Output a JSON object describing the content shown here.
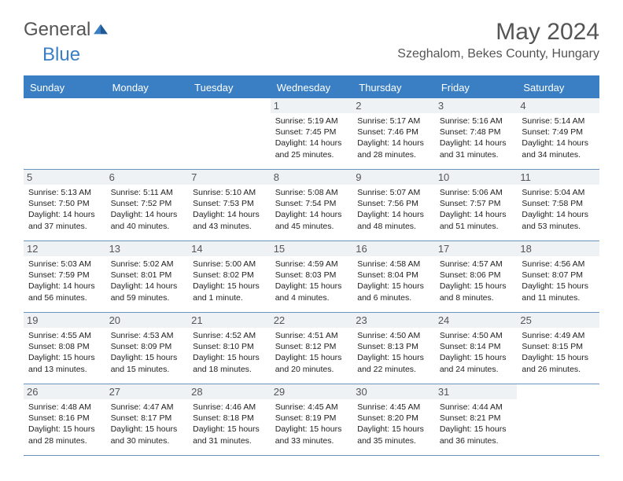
{
  "logo": {
    "general": "General",
    "blue": "Blue"
  },
  "title": "May 2024",
  "location": "Szeghalom, Bekes County, Hungary",
  "dayHeaders": [
    "Sunday",
    "Monday",
    "Tuesday",
    "Wednesday",
    "Thursday",
    "Friday",
    "Saturday"
  ],
  "colors": {
    "headerBlue": "#3a7fc4",
    "borderBlue": "#6a94bd",
    "dayBg": "#eef2f5",
    "textGray": "#555555"
  },
  "weeks": [
    [
      null,
      null,
      null,
      {
        "n": "1",
        "sr": "Sunrise: 5:19 AM",
        "ss": "Sunset: 7:45 PM",
        "dl": "Daylight: 14 hours and 25 minutes."
      },
      {
        "n": "2",
        "sr": "Sunrise: 5:17 AM",
        "ss": "Sunset: 7:46 PM",
        "dl": "Daylight: 14 hours and 28 minutes."
      },
      {
        "n": "3",
        "sr": "Sunrise: 5:16 AM",
        "ss": "Sunset: 7:48 PM",
        "dl": "Daylight: 14 hours and 31 minutes."
      },
      {
        "n": "4",
        "sr": "Sunrise: 5:14 AM",
        "ss": "Sunset: 7:49 PM",
        "dl": "Daylight: 14 hours and 34 minutes."
      }
    ],
    [
      {
        "n": "5",
        "sr": "Sunrise: 5:13 AM",
        "ss": "Sunset: 7:50 PM",
        "dl": "Daylight: 14 hours and 37 minutes."
      },
      {
        "n": "6",
        "sr": "Sunrise: 5:11 AM",
        "ss": "Sunset: 7:52 PM",
        "dl": "Daylight: 14 hours and 40 minutes."
      },
      {
        "n": "7",
        "sr": "Sunrise: 5:10 AM",
        "ss": "Sunset: 7:53 PM",
        "dl": "Daylight: 14 hours and 43 minutes."
      },
      {
        "n": "8",
        "sr": "Sunrise: 5:08 AM",
        "ss": "Sunset: 7:54 PM",
        "dl": "Daylight: 14 hours and 45 minutes."
      },
      {
        "n": "9",
        "sr": "Sunrise: 5:07 AM",
        "ss": "Sunset: 7:56 PM",
        "dl": "Daylight: 14 hours and 48 minutes."
      },
      {
        "n": "10",
        "sr": "Sunrise: 5:06 AM",
        "ss": "Sunset: 7:57 PM",
        "dl": "Daylight: 14 hours and 51 minutes."
      },
      {
        "n": "11",
        "sr": "Sunrise: 5:04 AM",
        "ss": "Sunset: 7:58 PM",
        "dl": "Daylight: 14 hours and 53 minutes."
      }
    ],
    [
      {
        "n": "12",
        "sr": "Sunrise: 5:03 AM",
        "ss": "Sunset: 7:59 PM",
        "dl": "Daylight: 14 hours and 56 minutes."
      },
      {
        "n": "13",
        "sr": "Sunrise: 5:02 AM",
        "ss": "Sunset: 8:01 PM",
        "dl": "Daylight: 14 hours and 59 minutes."
      },
      {
        "n": "14",
        "sr": "Sunrise: 5:00 AM",
        "ss": "Sunset: 8:02 PM",
        "dl": "Daylight: 15 hours and 1 minute."
      },
      {
        "n": "15",
        "sr": "Sunrise: 4:59 AM",
        "ss": "Sunset: 8:03 PM",
        "dl": "Daylight: 15 hours and 4 minutes."
      },
      {
        "n": "16",
        "sr": "Sunrise: 4:58 AM",
        "ss": "Sunset: 8:04 PM",
        "dl": "Daylight: 15 hours and 6 minutes."
      },
      {
        "n": "17",
        "sr": "Sunrise: 4:57 AM",
        "ss": "Sunset: 8:06 PM",
        "dl": "Daylight: 15 hours and 8 minutes."
      },
      {
        "n": "18",
        "sr": "Sunrise: 4:56 AM",
        "ss": "Sunset: 8:07 PM",
        "dl": "Daylight: 15 hours and 11 minutes."
      }
    ],
    [
      {
        "n": "19",
        "sr": "Sunrise: 4:55 AM",
        "ss": "Sunset: 8:08 PM",
        "dl": "Daylight: 15 hours and 13 minutes."
      },
      {
        "n": "20",
        "sr": "Sunrise: 4:53 AM",
        "ss": "Sunset: 8:09 PM",
        "dl": "Daylight: 15 hours and 15 minutes."
      },
      {
        "n": "21",
        "sr": "Sunrise: 4:52 AM",
        "ss": "Sunset: 8:10 PM",
        "dl": "Daylight: 15 hours and 18 minutes."
      },
      {
        "n": "22",
        "sr": "Sunrise: 4:51 AM",
        "ss": "Sunset: 8:12 PM",
        "dl": "Daylight: 15 hours and 20 minutes."
      },
      {
        "n": "23",
        "sr": "Sunrise: 4:50 AM",
        "ss": "Sunset: 8:13 PM",
        "dl": "Daylight: 15 hours and 22 minutes."
      },
      {
        "n": "24",
        "sr": "Sunrise: 4:50 AM",
        "ss": "Sunset: 8:14 PM",
        "dl": "Daylight: 15 hours and 24 minutes."
      },
      {
        "n": "25",
        "sr": "Sunrise: 4:49 AM",
        "ss": "Sunset: 8:15 PM",
        "dl": "Daylight: 15 hours and 26 minutes."
      }
    ],
    [
      {
        "n": "26",
        "sr": "Sunrise: 4:48 AM",
        "ss": "Sunset: 8:16 PM",
        "dl": "Daylight: 15 hours and 28 minutes."
      },
      {
        "n": "27",
        "sr": "Sunrise: 4:47 AM",
        "ss": "Sunset: 8:17 PM",
        "dl": "Daylight: 15 hours and 30 minutes."
      },
      {
        "n": "28",
        "sr": "Sunrise: 4:46 AM",
        "ss": "Sunset: 8:18 PM",
        "dl": "Daylight: 15 hours and 31 minutes."
      },
      {
        "n": "29",
        "sr": "Sunrise: 4:45 AM",
        "ss": "Sunset: 8:19 PM",
        "dl": "Daylight: 15 hours and 33 minutes."
      },
      {
        "n": "30",
        "sr": "Sunrise: 4:45 AM",
        "ss": "Sunset: 8:20 PM",
        "dl": "Daylight: 15 hours and 35 minutes."
      },
      {
        "n": "31",
        "sr": "Sunrise: 4:44 AM",
        "ss": "Sunset: 8:21 PM",
        "dl": "Daylight: 15 hours and 36 minutes."
      },
      null
    ]
  ]
}
